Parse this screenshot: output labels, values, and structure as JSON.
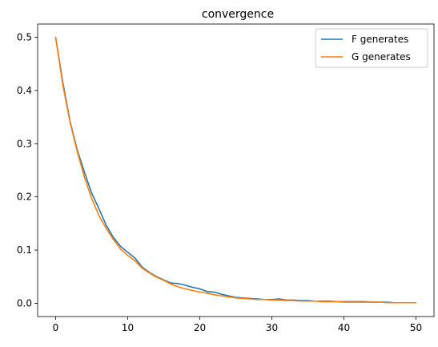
{
  "chart_data": {
    "type": "line",
    "title": "convergence",
    "xlabel": "",
    "ylabel": "",
    "xlim": [
      -2.5,
      52.5
    ],
    "ylim": [
      -0.025,
      0.525
    ],
    "xticks": [
      0,
      10,
      20,
      30,
      40,
      50
    ],
    "yticks": [
      0.0,
      0.1,
      0.2,
      0.3,
      0.4,
      0.5
    ],
    "ytick_labels": [
      "0.0",
      "0.1",
      "0.2",
      "0.3",
      "0.4",
      "0.5"
    ],
    "grid": false,
    "legend_position": "top-right",
    "x": [
      0,
      1,
      2,
      3,
      4,
      5,
      6,
      7,
      8,
      9,
      10,
      11,
      12,
      13,
      14,
      15,
      16,
      17,
      18,
      19,
      20,
      21,
      22,
      23,
      24,
      25,
      26,
      27,
      28,
      29,
      30,
      31,
      32,
      33,
      34,
      35,
      36,
      37,
      38,
      39,
      40,
      41,
      42,
      43,
      44,
      45,
      46,
      47,
      48,
      49,
      50
    ],
    "series": [
      {
        "name": "F generates",
        "color": "#1f77b4",
        "values": [
          0.5,
          0.415,
          0.342,
          0.288,
          0.246,
          0.207,
          0.178,
          0.147,
          0.124,
          0.107,
          0.096,
          0.085,
          0.068,
          0.058,
          0.05,
          0.044,
          0.038,
          0.037,
          0.034,
          0.03,
          0.027,
          0.022,
          0.021,
          0.017,
          0.014,
          0.011,
          0.01,
          0.009,
          0.008,
          0.007,
          0.007,
          0.008,
          0.006,
          0.006,
          0.005,
          0.005,
          0.004,
          0.004,
          0.004,
          0.003,
          0.003,
          0.003,
          0.003,
          0.003,
          0.002,
          0.002,
          0.002,
          0.001,
          0.001,
          0.001,
          0.001
        ]
      },
      {
        "name": "G generates",
        "color": "#ff7f0e",
        "values": [
          0.5,
          0.41,
          0.34,
          0.285,
          0.237,
          0.197,
          0.165,
          0.141,
          0.12,
          0.102,
          0.09,
          0.08,
          0.066,
          0.057,
          0.049,
          0.043,
          0.036,
          0.031,
          0.027,
          0.024,
          0.021,
          0.019,
          0.016,
          0.014,
          0.012,
          0.01,
          0.009,
          0.008,
          0.007,
          0.007,
          0.006,
          0.006,
          0.005,
          0.005,
          0.004,
          0.004,
          0.004,
          0.003,
          0.003,
          0.003,
          0.002,
          0.002,
          0.002,
          0.002,
          0.002,
          0.002,
          0.001,
          0.001,
          0.001,
          0.001,
          0.001
        ]
      }
    ]
  }
}
